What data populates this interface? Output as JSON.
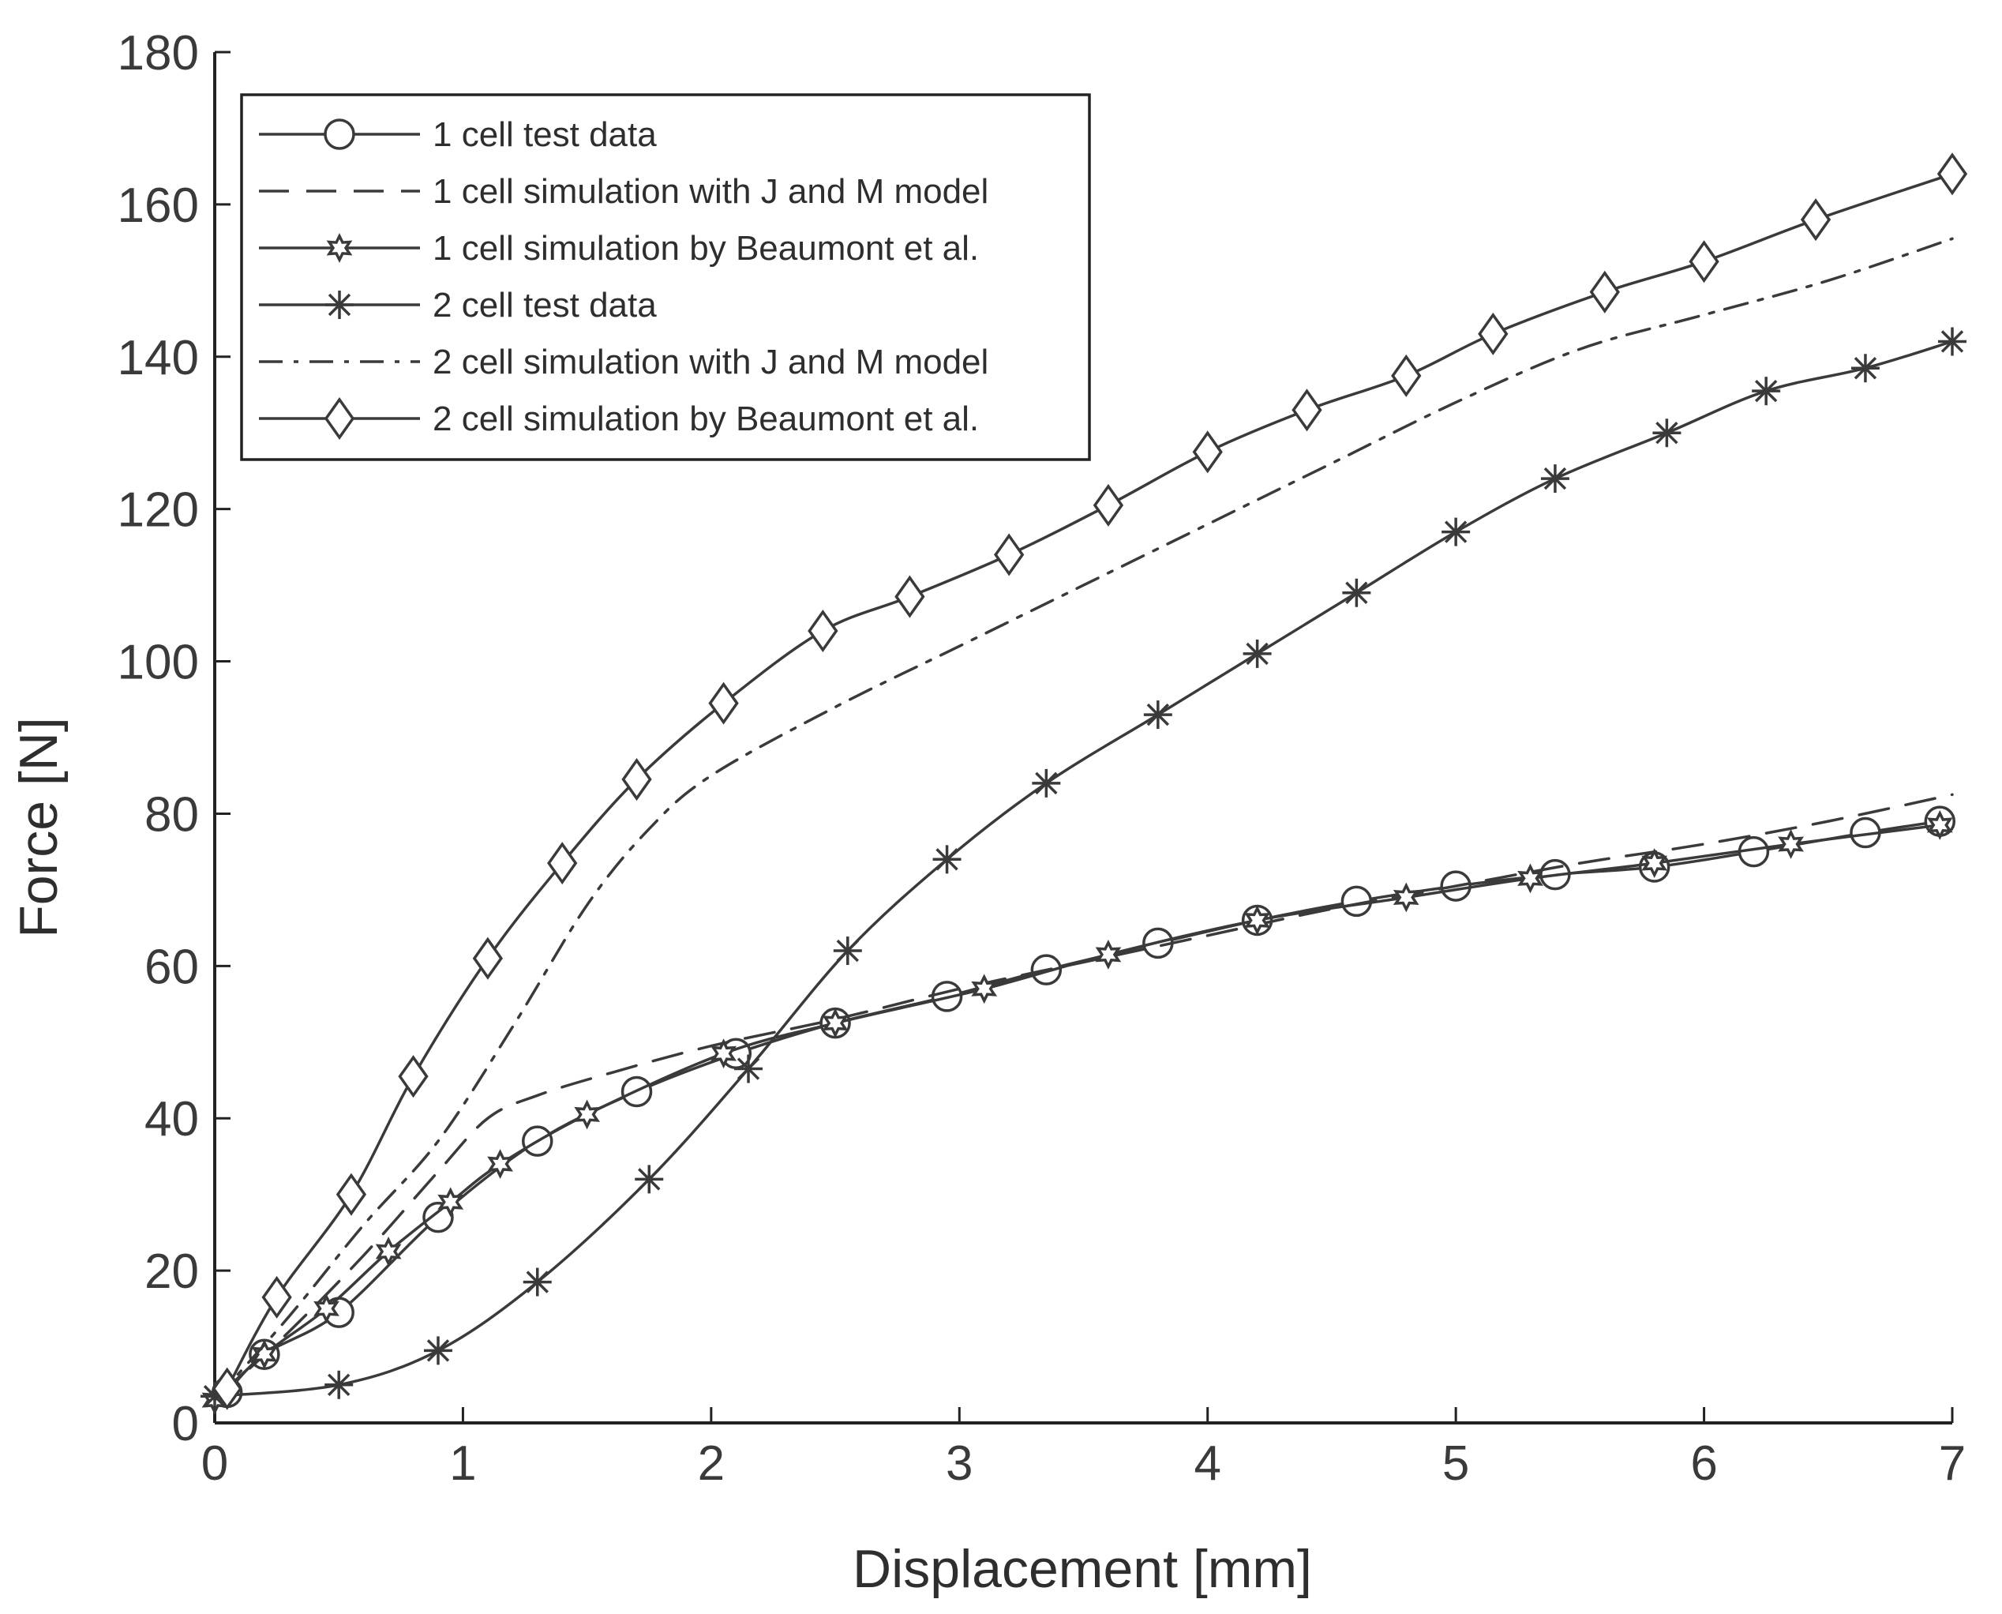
{
  "chart_data": {
    "type": "line",
    "title": "",
    "xlabel": "Displacement [mm]",
    "ylabel": "Force [N]",
    "xlim": [
      0,
      7
    ],
    "ylim": [
      0,
      180
    ],
    "xticks": [
      0,
      1,
      2,
      3,
      4,
      5,
      6,
      7
    ],
    "yticks": [
      0,
      20,
      40,
      60,
      80,
      100,
      120,
      140,
      160,
      180
    ],
    "grid": false,
    "legend_position": "top-left",
    "series": [
      {
        "name": "1 cell test data",
        "line_style": "solid",
        "marker": "circle",
        "color": "#3a3a3a",
        "x": [
          0.05,
          0.2,
          0.5,
          0.9,
          1.3,
          1.7,
          2.1,
          2.5,
          2.95,
          3.35,
          3.8,
          4.2,
          4.6,
          5.0,
          5.4,
          5.8,
          6.2,
          6.65,
          6.95
        ],
        "y": [
          4,
          9,
          14.5,
          27,
          37,
          43.5,
          48.5,
          52.5,
          56,
          59.5,
          63,
          66,
          68.5,
          70.5,
          72,
          73,
          75,
          77.5,
          79
        ]
      },
      {
        "name": "1 cell simulation with J and M model",
        "line_style": "dashed",
        "marker": "none",
        "color": "#3a3a3a",
        "x": [
          0,
          0.3,
          0.6,
          0.9,
          1.1,
          1.3,
          1.6,
          2.0,
          2.5,
          3.0,
          3.5,
          4.0,
          4.5,
          5.0,
          5.5,
          6.0,
          6.5,
          7.0
        ],
        "y": [
          3,
          12,
          22,
          33,
          40,
          43,
          46,
          49.5,
          53,
          57,
          60.5,
          64,
          67.5,
          70.5,
          73.5,
          76,
          79,
          82.5
        ]
      },
      {
        "name": "1 cell simulation by Beaumont et al.",
        "line_style": "solid",
        "marker": "hexagram",
        "color": "#3a3a3a",
        "x": [
          0.0,
          0.2,
          0.45,
          0.7,
          0.95,
          1.15,
          1.5,
          2.05,
          2.5,
          3.1,
          3.6,
          4.2,
          4.8,
          5.3,
          5.8,
          6.35,
          6.95
        ],
        "y": [
          3,
          9,
          15,
          22.5,
          29,
          34,
          40.5,
          48.5,
          52.5,
          57,
          61.5,
          66,
          69,
          71.5,
          73.5,
          76,
          78.5
        ]
      },
      {
        "name": "2 cell test data",
        "line_style": "solid",
        "marker": "asterisk",
        "color": "#3a3a3a",
        "x": [
          0.0,
          0.5,
          0.9,
          1.3,
          1.75,
          2.15,
          2.55,
          2.95,
          3.35,
          3.8,
          4.2,
          4.6,
          5.0,
          5.4,
          5.85,
          6.25,
          6.65,
          7.0
        ],
        "y": [
          3.5,
          5,
          9.5,
          18.5,
          32,
          46.5,
          62,
          74,
          84,
          93,
          101,
          109,
          117,
          124,
          130,
          135.5,
          138.5,
          142
        ]
      },
      {
        "name": "2 cell simulation with J and M model",
        "line_style": "dashdot",
        "marker": "none",
        "color": "#3a3a3a",
        "x": [
          0,
          0.3,
          0.6,
          0.9,
          1.2,
          1.5,
          1.75,
          2.0,
          2.5,
          3.0,
          3.5,
          4.0,
          4.5,
          5.0,
          5.5,
          6.0,
          6.5,
          7.0
        ],
        "y": [
          3,
          14,
          26,
          37,
          52,
          68,
          78,
          85,
          94,
          102,
          110,
          118,
          126,
          134,
          141,
          145.5,
          150,
          155.5
        ]
      },
      {
        "name": "2 cell simulation by Beaumont et al.",
        "line_style": "solid",
        "marker": "diamond",
        "color": "#3a3a3a",
        "x": [
          0.05,
          0.25,
          0.55,
          0.8,
          1.1,
          1.4,
          1.7,
          2.05,
          2.45,
          2.8,
          3.2,
          3.6,
          4.0,
          4.4,
          4.8,
          5.15,
          5.6,
          6.0,
          6.45,
          7.0
        ],
        "y": [
          4.5,
          16.5,
          30,
          45.5,
          61,
          73.5,
          84.5,
          94.5,
          104,
          108.5,
          114,
          120.5,
          127.5,
          133,
          137.5,
          143,
          148.5,
          152.5,
          158,
          164
        ]
      }
    ]
  }
}
